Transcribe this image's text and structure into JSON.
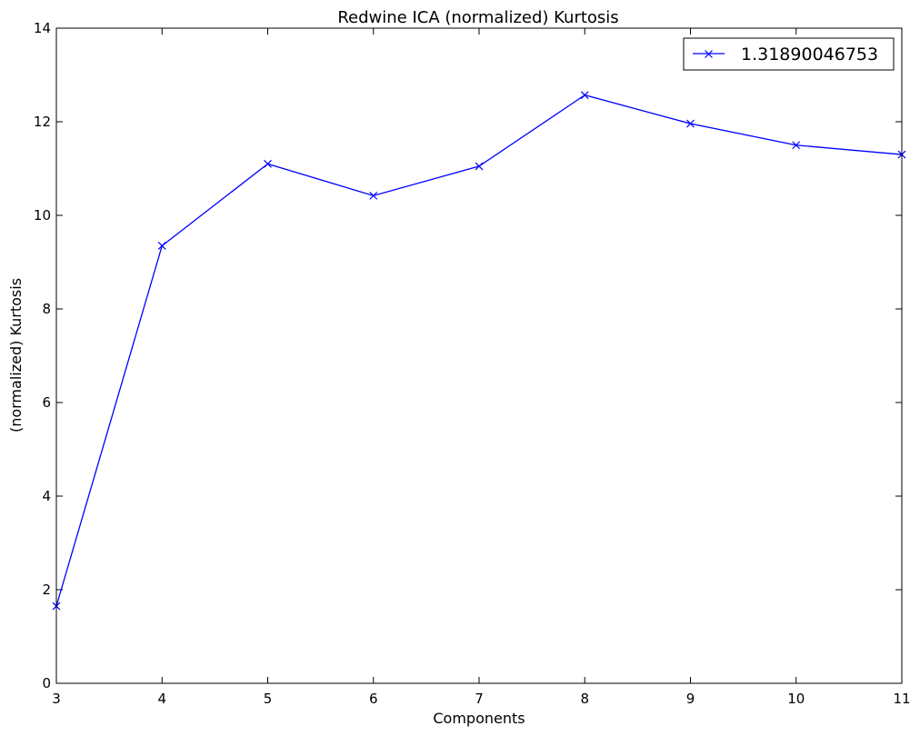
{
  "chart_data": {
    "type": "line",
    "title": "Redwine ICA (normalized) Kurtosis",
    "xlabel": "Components",
    "ylabel": "(normalized) Kurtosis",
    "xlim": [
      3,
      11
    ],
    "ylim": [
      0,
      14
    ],
    "xticks": [
      3,
      4,
      5,
      6,
      7,
      8,
      9,
      10,
      11
    ],
    "yticks": [
      0,
      2,
      4,
      6,
      8,
      10,
      12,
      14
    ],
    "grid": false,
    "legend_position": "top-right",
    "series": [
      {
        "name": "1.31890046753",
        "color": "#0000ff",
        "marker": "x",
        "x": [
          3,
          4,
          5,
          6,
          7,
          8,
          9,
          10,
          11
        ],
        "y": [
          1.65,
          9.35,
          11.1,
          10.42,
          11.05,
          12.57,
          11.96,
          11.5,
          11.3
        ]
      }
    ]
  }
}
